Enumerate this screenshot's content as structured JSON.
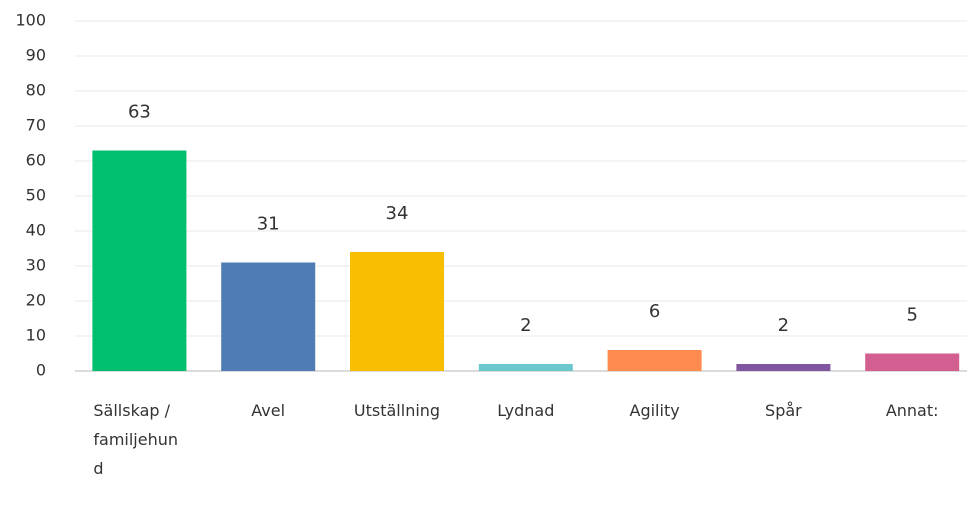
{
  "chart_data": {
    "type": "bar",
    "categories": [
      "Sällskap / familjehund",
      "Avel",
      "Utställning",
      "Lydnad",
      "Agility",
      "Spår",
      "Annat:"
    ],
    "values": [
      63,
      31,
      34,
      2,
      6,
      2,
      5
    ],
    "colors": [
      "#00bf6f",
      "#507cb6",
      "#f9be00",
      "#6bc8cd",
      "#ff8b4f",
      "#7f569f",
      "#d25f90"
    ],
    "ylim": [
      0,
      100
    ],
    "yticks": [
      0,
      10,
      20,
      30,
      40,
      50,
      60,
      70,
      80,
      90,
      100
    ],
    "grid": true
  }
}
